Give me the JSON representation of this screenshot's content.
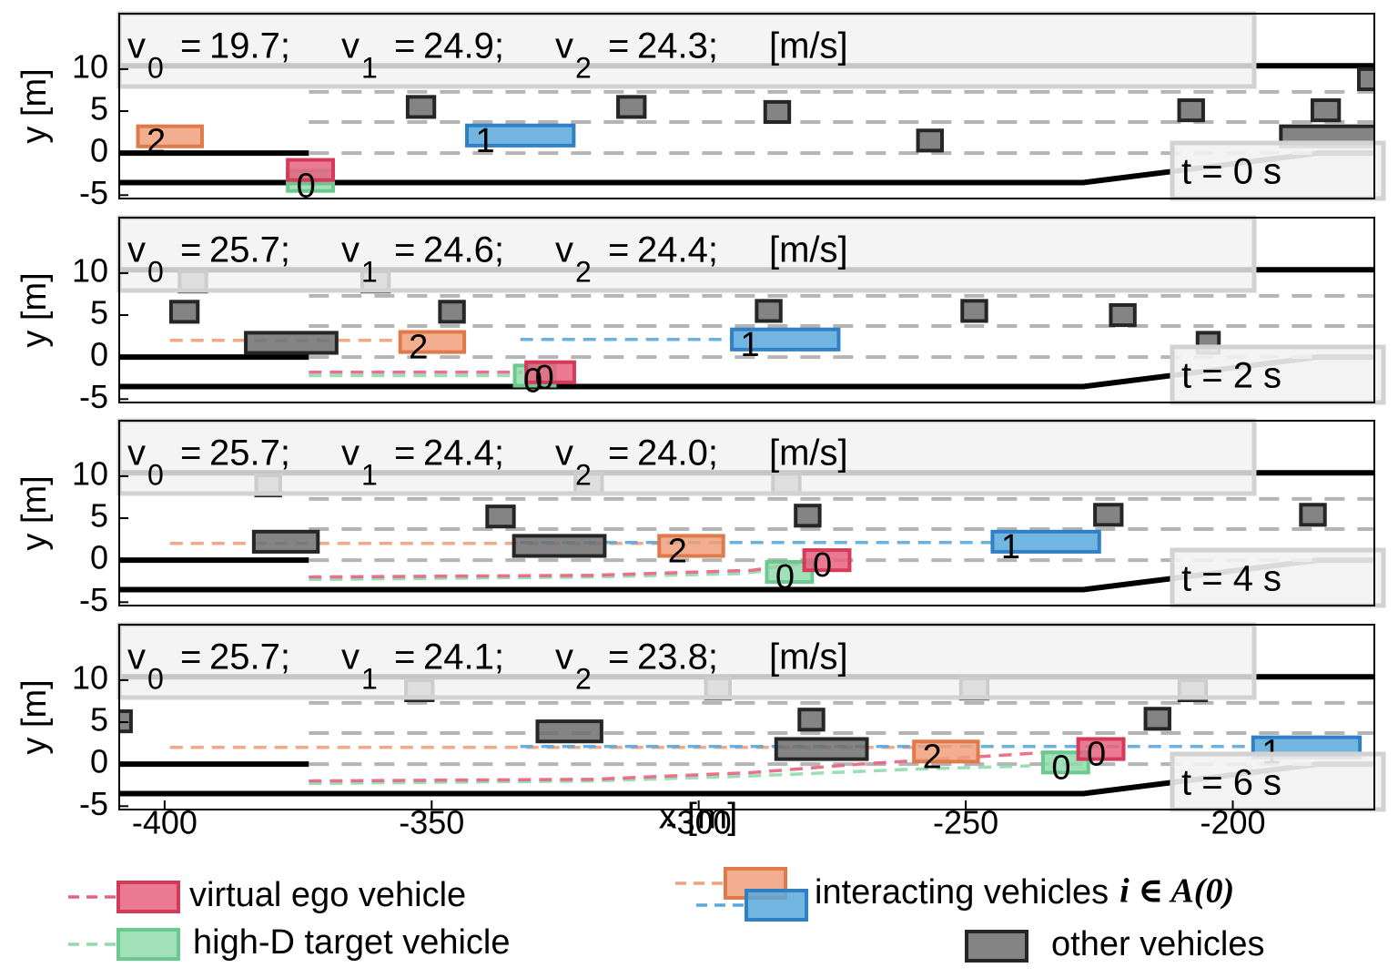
{
  "road": {
    "vehicle_width": 2.4,
    "lines": [
      {
        "x": [
          -408.5,
          -173.5
        ],
        "values": [
          10.4,
          10.4
        ],
        "style": "solid",
        "color": "#000000"
      },
      {
        "x": [
          -408.5,
          -228,
          -184,
          -173.5
        ],
        "values": [
          -3.5,
          -3.5,
          0,
          0
        ],
        "style": "solid",
        "color": "#000000"
      },
      {
        "x": [
          -408.5,
          -373
        ],
        "values": [
          0,
          0
        ],
        "style": "solid",
        "color": "#000000"
      },
      {
        "x": [
          -373,
          -173.5
        ],
        "values": [
          7.3,
          7.3
        ],
        "style": "dashed",
        "color": "#b4b4b4"
      },
      {
        "x": [
          -373,
          -173.5
        ],
        "values": [
          3.7,
          3.7
        ],
        "style": "dashed",
        "color": "#b4b4b4"
      },
      {
        "x": [
          -373,
          -184
        ],
        "values": [
          0,
          0
        ],
        "style": "dashed",
        "color": "#b4b4b4"
      }
    ]
  },
  "speed_text": {
    "eq": "=",
    "end": ";"
  },
  "legend": [
    {
      "name": "virtual ego vehicle",
      "swatches": [
        {
          "color": "#e8627f",
          "stroke": "#d43a5a"
        }
      ],
      "dashed": true
    },
    {
      "name": "high-D target vehicle",
      "swatches": [
        {
          "color": "#8fdcab",
          "stroke": "#6cc98e"
        }
      ],
      "dashed": true
    },
    {
      "name": "interacting vehicles",
      "math": "i ∈ A(0)",
      "swatches": [
        {
          "color": "#f0a07a",
          "stroke": "#e07a4a"
        },
        {
          "color": "#5aa8dc",
          "stroke": "#2f80c4"
        }
      ],
      "dashed": true
    },
    {
      "name": "other vehicles",
      "swatches": [
        {
          "color": "#6e6e6e",
          "stroke": "#262626"
        }
      ],
      "dashed": false
    }
  ],
  "chart_data": [
    {
      "type": "scatter",
      "annotation": "t = 0 s",
      "ylabel": "y [m]",
      "speeds": [
        {
          "symbol": "v",
          "sub": "0",
          "value": 19.7
        },
        {
          "symbol": "v",
          "sub": "1",
          "value": 24.9
        },
        {
          "symbol": "v",
          "sub": "2",
          "value": 24.3
        }
      ],
      "speed_unit": "[m/s]",
      "xlim": [
        -408.5,
        -173.5
      ],
      "ylim": [
        -5.4,
        16.6
      ],
      "yticks": [
        -5,
        0,
        5,
        10
      ],
      "trajectories": [],
      "series": [
        {
          "color": "#6e6e6e",
          "stroke": "#262626",
          "x": [
            -352,
            -312.6,
            -285.3,
            -256.7,
            -207.8,
            -182.6,
            -174.4,
            -182
          ],
          "values": [
            5.5,
            5.5,
            4.9,
            1.5,
            5.1,
            5.1,
            8.8,
            2.0
          ],
          "lengths": [
            5,
            5,
            4.5,
            4.5,
            4.5,
            5,
            4,
            18
          ]
        },
        {
          "color": "#8fdcab",
          "stroke": "#6cc98e",
          "x": [
            -372.7
          ],
          "values": [
            -3.3
          ],
          "lengths": [
            8.5
          ],
          "labels": [
            "0"
          ]
        },
        {
          "color": "#f0a07a",
          "stroke": "#e07a4a",
          "x": [
            -399
          ],
          "values": [
            2.0
          ],
          "lengths": [
            12
          ],
          "labels": [
            "2"
          ]
        },
        {
          "color": "#5aa8dc",
          "stroke": "#2f80c4",
          "x": [
            -333.4
          ],
          "values": [
            2.1
          ],
          "lengths": [
            20
          ],
          "labels": [
            "1"
          ]
        },
        {
          "color": "#e8627f",
          "stroke": "#d43a5a",
          "x": [
            -372.7
          ],
          "values": [
            -2.0
          ],
          "lengths": [
            8.5
          ]
        }
      ]
    },
    {
      "type": "scatter",
      "annotation": "t = 2 s",
      "ylabel": "y [m]",
      "speeds": [
        {
          "symbol": "v",
          "sub": "0",
          "value": 25.7
        },
        {
          "symbol": "v",
          "sub": "1",
          "value": 24.6
        },
        {
          "symbol": "v",
          "sub": "2",
          "value": 24.4
        }
      ],
      "speed_unit": "[m/s]",
      "xlim": [
        -408.5,
        -173.5
      ],
      "ylim": [
        -5.4,
        16.6
      ],
      "yticks": [
        -5,
        0,
        5,
        10
      ],
      "trajectories": [
        {
          "color": "#f0a07a",
          "x": [
            -399,
            -356
          ],
          "values": [
            2,
            2
          ]
        },
        {
          "color": "#5aa8dc",
          "x": [
            -333.4,
            -294
          ],
          "values": [
            2.1,
            2.1
          ]
        },
        {
          "color": "#8fdcab",
          "x": [
            -373,
            -335
          ],
          "values": [
            -2.2,
            -2.2
          ]
        },
        {
          "color": "#e8627f",
          "x": [
            -373,
            -333
          ],
          "values": [
            -1.8,
            -1.8
          ]
        }
      ],
      "series": [
        {
          "color": "#6e6e6e",
          "stroke": "#262626",
          "x": [
            -396.3,
            -346.2,
            -286.9,
            -248.4,
            -220.6,
            -204.6,
            -376.3,
            -394.7,
            -360.5
          ],
          "values": [
            5.4,
            5.4,
            5.5,
            5.5,
            5.0,
            1.7,
            1.7,
            9.0,
            9.0
          ],
          "lengths": [
            5,
            4.5,
            4.5,
            4.5,
            4.5,
            4,
            17,
            5,
            5
          ]
        },
        {
          "color": "#8fdcab",
          "stroke": "#6cc98e",
          "x": [
            -330.7
          ],
          "values": [
            -2.2
          ],
          "lengths": [
            7.5
          ],
          "labels": [
            "0"
          ]
        },
        {
          "color": "#f0a07a",
          "stroke": "#e07a4a",
          "x": [
            -349.9
          ],
          "values": [
            1.8
          ],
          "lengths": [
            12
          ],
          "labels": [
            "2"
          ]
        },
        {
          "color": "#5aa8dc",
          "stroke": "#2f80c4",
          "x": [
            -283.8
          ],
          "values": [
            2.1
          ],
          "lengths": [
            20
          ],
          "labels": [
            "1"
          ]
        },
        {
          "color": "#e8627f",
          "stroke": "#d43a5a",
          "x": [
            -327.8
          ],
          "values": [
            -1.8
          ],
          "lengths": [
            9
          ],
          "labels": [
            "0"
          ]
        }
      ]
    },
    {
      "type": "scatter",
      "annotation": "t = 4 s",
      "ylabel": "y [m]",
      "speeds": [
        {
          "symbol": "v",
          "sub": "0",
          "value": 25.7
        },
        {
          "symbol": "v",
          "sub": "1",
          "value": 24.4
        },
        {
          "symbol": "v",
          "sub": "2",
          "value": 24,
          "label": "24.0"
        }
      ],
      "speed_unit": "[m/s]",
      "xlim": [
        -408.5,
        -173.5
      ],
      "ylim": [
        -5.4,
        16.6
      ],
      "yticks": [
        -5,
        0,
        5,
        10
      ],
      "trajectories": [
        {
          "color": "#f0a07a",
          "x": [
            -399,
            -307
          ],
          "values": [
            2,
            2
          ]
        },
        {
          "color": "#5aa8dc",
          "x": [
            -333.4,
            -245
          ],
          "values": [
            2.1,
            2.1
          ]
        },
        {
          "color": "#8fdcab",
          "x": [
            -373,
            -320,
            -292,
            -288
          ],
          "values": [
            -2.3,
            -2.0,
            -1.6,
            -1.3
          ]
        },
        {
          "color": "#e8627f",
          "x": [
            -373,
            -320,
            -290,
            -281
          ],
          "values": [
            -2,
            -1.8,
            -1.2,
            -0.4
          ]
        }
      ],
      "series": [
        {
          "color": "#6e6e6e",
          "stroke": "#262626",
          "x": [
            -377.3,
            -326.1,
            -337.1,
            -279.6,
            -223.3,
            -185.0,
            -380.6,
            -320.6,
            -283.6
          ],
          "values": [
            2.2,
            1.7,
            5.2,
            5.3,
            5.4,
            5.4,
            8.9,
            9.1,
            9.1
          ],
          "lengths": [
            12,
            17,
            5,
            4.5,
            5,
            4.5,
            4.5,
            5,
            5
          ]
        },
        {
          "color": "#8fdcab",
          "stroke": "#6cc98e",
          "x": [
            -283
          ],
          "values": [
            -1.4
          ],
          "lengths": [
            8.5
          ],
          "labels": [
            "0"
          ]
        },
        {
          "color": "#f0a07a",
          "stroke": "#e07a4a",
          "x": [
            -301.4
          ],
          "values": [
            1.7
          ],
          "lengths": [
            12
          ],
          "labels": [
            "2"
          ]
        },
        {
          "color": "#5aa8dc",
          "stroke": "#2f80c4",
          "x": [
            -235
          ],
          "values": [
            2.2
          ],
          "lengths": [
            20
          ],
          "labels": [
            "1"
          ]
        },
        {
          "color": "#e8627f",
          "stroke": "#d43a5a",
          "x": [
            -276
          ],
          "values": [
            0
          ],
          "lengths": [
            8.5
          ],
          "labels": [
            "0"
          ]
        }
      ]
    },
    {
      "type": "scatter",
      "annotation": "t = 6 s",
      "ylabel": "y [m]",
      "xlabel": "x [m]",
      "speeds": [
        {
          "symbol": "v",
          "sub": "0",
          "value": 25.7
        },
        {
          "symbol": "v",
          "sub": "1",
          "value": 24.1
        },
        {
          "symbol": "v",
          "sub": "2",
          "value": 23.8
        }
      ],
      "speed_unit": "[m/s]",
      "xlim": [
        -408.5,
        -173.5
      ],
      "ylim": [
        -5.4,
        16.6
      ],
      "yticks": [
        -5,
        0,
        5,
        10
      ],
      "xticks": [
        -400,
        -350,
        -300,
        -250,
        -200
      ],
      "trajectories": [
        {
          "color": "#f0a07a",
          "x": [
            -399,
            -259.8
          ],
          "values": [
            2,
            2
          ]
        },
        {
          "color": "#5aa8dc",
          "x": [
            -333.4,
            -196.3
          ],
          "values": [
            2.1,
            2.1
          ]
        },
        {
          "color": "#8fdcab",
          "x": [
            -373,
            -320,
            -290,
            -260,
            -238
          ],
          "values": [
            -2.3,
            -2.0,
            -1.4,
            -0.6,
            -0.2
          ]
        },
        {
          "color": "#e8627f",
          "x": [
            -373,
            -320,
            -290,
            -270,
            -250,
            -232
          ],
          "values": [
            -2,
            -1.8,
            -1.0,
            0,
            0.8,
            1.5
          ]
        }
      ],
      "series": [
        {
          "color": "#6e6e6e",
          "stroke": "#262626",
          "x": [
            -278.9,
            -324.2,
            -277,
            -214.1,
            -407.8,
            -352.3,
            -296.4,
            -248.4,
            -207.5
          ],
          "values": [
            5.3,
            3.9,
            1.8,
            5.4,
            5.1,
            8.8,
            9.0,
            9.0,
            8.8
          ],
          "lengths": [
            4.5,
            12,
            17,
            4.5,
            3,
            5,
            4.5,
            5,
            5
          ]
        },
        {
          "color": "#8fdcab",
          "stroke": "#6cc98e",
          "x": [
            -231.3
          ],
          "values": [
            0.2
          ],
          "lengths": [
            8.5
          ],
          "labels": [
            "0"
          ]
        },
        {
          "color": "#f0a07a",
          "stroke": "#e07a4a",
          "x": [
            -253.7
          ],
          "values": [
            1.5
          ],
          "lengths": [
            12
          ],
          "labels": [
            "2"
          ]
        },
        {
          "color": "#5aa8dc",
          "stroke": "#2f80c4",
          "x": [
            -186.2
          ],
          "values": [
            2.0
          ],
          "lengths": [
            20
          ],
          "labels": [
            "1"
          ]
        },
        {
          "color": "#e8627f",
          "stroke": "#d43a5a",
          "x": [
            -224.7
          ],
          "values": [
            1.8
          ],
          "lengths": [
            8.5
          ],
          "labels": [
            "0"
          ]
        }
      ]
    }
  ]
}
